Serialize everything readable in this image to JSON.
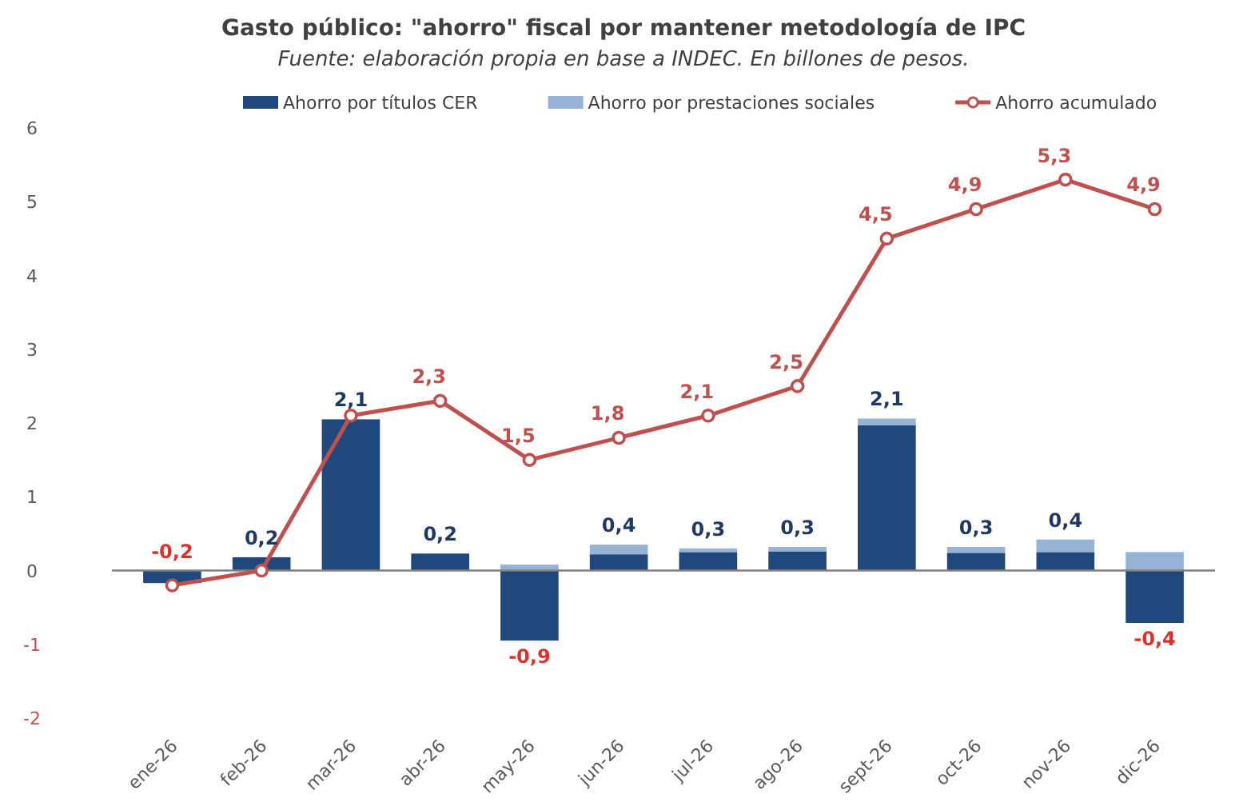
{
  "chart_data": {
    "type": "bar",
    "stacked": true,
    "title": "Gasto público: \"ahorro\" fiscal por mantener metodología de IPC",
    "subtitle": "Fuente: elaboración propia en base a INDEC. En billones de pesos.",
    "categories": [
      "ene-26",
      "feb-26",
      "mar-26",
      "abr-26",
      "may-26",
      "jun-26",
      "jul-26",
      "ago-26",
      "sept-26",
      "oct-26",
      "nov-26",
      "dic-26"
    ],
    "series": [
      {
        "name": "Ahorro por títulos CER",
        "color": "#1f497d",
        "values": [
          -0.17,
          0.18,
          2.05,
          0.23,
          -0.95,
          0.22,
          0.25,
          0.26,
          1.97,
          0.24,
          0.25,
          -0.71
        ]
      },
      {
        "name": "Ahorro por prestaciones sociales",
        "color": "#95b3d7",
        "values": [
          null,
          null,
          null,
          null,
          0.08,
          0.13,
          0.05,
          0.06,
          0.09,
          0.08,
          0.17,
          0.25
        ]
      },
      {
        "name": "Ahorro acumulado",
        "type": "line",
        "color": "#c0504d",
        "marker": "circle",
        "values": [
          -0.2,
          0.0,
          2.1,
          2.3,
          1.5,
          1.8,
          2.1,
          2.5,
          4.5,
          4.9,
          5.3,
          4.9
        ],
        "value_labels": [
          null,
          null,
          null,
          "2,3",
          "1,5",
          "1,8",
          "2,1",
          "2,5",
          "4,5",
          "4,9",
          "5,3",
          "4,9"
        ]
      }
    ],
    "totals": [
      "-0,2",
      "0,2",
      "2,1",
      "0,2",
      "-0,9",
      "0,4",
      "0,3",
      "0,3",
      "2,1",
      "0,3",
      "0,4",
      "-0,4"
    ],
    "ylim": [
      -2,
      6
    ],
    "yticks": [
      -2,
      -1,
      0,
      1,
      2,
      3,
      4,
      5,
      6
    ],
    "legend": "top"
  }
}
